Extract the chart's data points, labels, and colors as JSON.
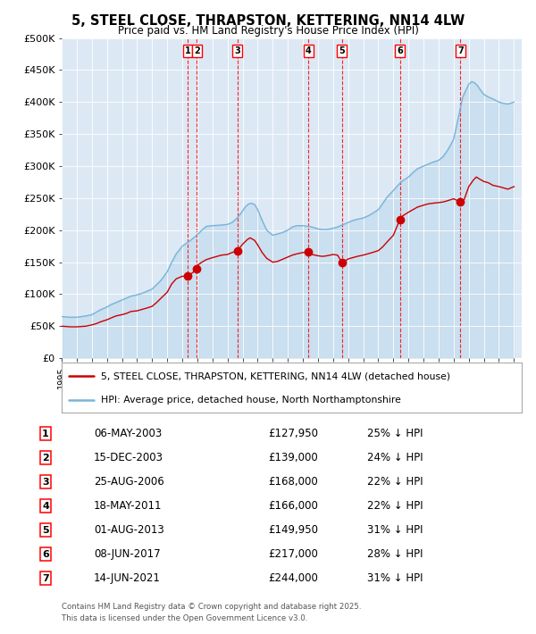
{
  "title": "5, STEEL CLOSE, THRAPSTON, KETTERING, NN14 4LW",
  "subtitle": "Price paid vs. HM Land Registry's House Price Index (HPI)",
  "background_color": "#ffffff",
  "plot_bg_color": "#dce9f5",
  "hpi_color": "#7ab4d8",
  "price_color": "#cc0000",
  "transactions": [
    {
      "num": 1,
      "date_x": 2003.35,
      "price": 127950,
      "pct": "25%",
      "label": "06-MAY-2003",
      "price_str": "£127,950"
    },
    {
      "num": 2,
      "date_x": 2003.96,
      "price": 139000,
      "pct": "24%",
      "label": "15-DEC-2003",
      "price_str": "£139,000"
    },
    {
      "num": 3,
      "date_x": 2006.65,
      "price": 168000,
      "pct": "22%",
      "label": "25-AUG-2006",
      "price_str": "£168,000"
    },
    {
      "num": 4,
      "date_x": 2011.38,
      "price": 166000,
      "pct": "22%",
      "label": "18-MAY-2011",
      "price_str": "£166,000"
    },
    {
      "num": 5,
      "date_x": 2013.58,
      "price": 149950,
      "pct": "31%",
      "label": "01-AUG-2013",
      "price_str": "£149,950"
    },
    {
      "num": 6,
      "date_x": 2017.44,
      "price": 217000,
      "pct": "28%",
      "label": "08-JUN-2017",
      "price_str": "£217,000"
    },
    {
      "num": 7,
      "date_x": 2021.45,
      "price": 244000,
      "pct": "31%",
      "label": "14-JUN-2021",
      "price_str": "£244,000"
    }
  ],
  "legend_line1": "5, STEEL CLOSE, THRAPSTON, KETTERING, NN14 4LW (detached house)",
  "legend_line2": "HPI: Average price, detached house, North Northamptonshire",
  "footer_line1": "Contains HM Land Registry data © Crown copyright and database right 2025.",
  "footer_line2": "This data is licensed under the Open Government Licence v3.0.",
  "ylim": [
    0,
    500000
  ],
  "yticks": [
    0,
    50000,
    100000,
    150000,
    200000,
    250000,
    300000,
    350000,
    400000,
    450000,
    500000
  ],
  "ytick_labels": [
    "£0",
    "£50K",
    "£100K",
    "£150K",
    "£200K",
    "£250K",
    "£300K",
    "£350K",
    "£400K",
    "£450K",
    "£500K"
  ],
  "xstart": 1995.0,
  "xend": 2025.5,
  "xtick_years": [
    1995,
    1996,
    1997,
    1998,
    1999,
    2000,
    2001,
    2002,
    2003,
    2004,
    2005,
    2006,
    2007,
    2008,
    2009,
    2010,
    2011,
    2012,
    2013,
    2014,
    2015,
    2016,
    2017,
    2018,
    2019,
    2020,
    2021,
    2022,
    2023,
    2024,
    2025
  ],
  "hpi_x": [
    1995.0,
    1995.3,
    1995.6,
    1996.0,
    1996.3,
    1996.6,
    1997.0,
    1997.3,
    1997.6,
    1998.0,
    1998.3,
    1998.6,
    1999.0,
    1999.3,
    1999.6,
    2000.0,
    2000.3,
    2000.6,
    2001.0,
    2001.3,
    2001.6,
    2002.0,
    2002.3,
    2002.6,
    2003.0,
    2003.3,
    2003.6,
    2004.0,
    2004.3,
    2004.6,
    2005.0,
    2005.3,
    2005.6,
    2006.0,
    2006.3,
    2006.6,
    2007.0,
    2007.2,
    2007.4,
    2007.6,
    2007.8,
    2008.0,
    2008.3,
    2008.6,
    2009.0,
    2009.3,
    2009.6,
    2010.0,
    2010.3,
    2010.6,
    2011.0,
    2011.3,
    2011.6,
    2012.0,
    2012.3,
    2012.6,
    2013.0,
    2013.3,
    2013.6,
    2014.0,
    2014.3,
    2014.6,
    2015.0,
    2015.3,
    2015.6,
    2016.0,
    2016.3,
    2016.6,
    2017.0,
    2017.3,
    2017.6,
    2018.0,
    2018.3,
    2018.6,
    2019.0,
    2019.3,
    2019.6,
    2020.0,
    2020.3,
    2020.6,
    2021.0,
    2021.3,
    2021.6,
    2022.0,
    2022.2,
    2022.4,
    2022.6,
    2022.8,
    2023.0,
    2023.3,
    2023.6,
    2024.0,
    2024.3,
    2024.6,
    2025.0
  ],
  "hpi_y": [
    65000,
    64500,
    64000,
    64000,
    65000,
    66000,
    68000,
    72000,
    76000,
    80000,
    84000,
    87000,
    91000,
    94000,
    97000,
    99000,
    101000,
    104000,
    108000,
    115000,
    122000,
    135000,
    150000,
    163000,
    175000,
    180000,
    185000,
    193000,
    200000,
    206000,
    207000,
    207500,
    208000,
    209000,
    212000,
    218000,
    230000,
    237000,
    241000,
    242000,
    240000,
    232000,
    215000,
    200000,
    192000,
    194000,
    196000,
    200000,
    205000,
    207000,
    207000,
    206000,
    205000,
    202000,
    201000,
    201000,
    203000,
    205000,
    208000,
    212000,
    215000,
    217000,
    219000,
    222000,
    226000,
    232000,
    242000,
    252000,
    262000,
    270000,
    277000,
    283000,
    290000,
    296000,
    300000,
    303000,
    306000,
    309000,
    315000,
    325000,
    342000,
    375000,
    408000,
    428000,
    432000,
    430000,
    425000,
    418000,
    412000,
    408000,
    405000,
    400000,
    398000,
    397000,
    400000
  ],
  "price_x": [
    1995.0,
    1995.3,
    1995.6,
    1996.0,
    1996.3,
    1996.6,
    1997.0,
    1997.3,
    1997.6,
    1998.0,
    1998.3,
    1998.6,
    1999.0,
    1999.3,
    1999.6,
    2000.0,
    2000.3,
    2000.6,
    2001.0,
    2001.3,
    2001.6,
    2002.0,
    2002.3,
    2002.6,
    2003.0,
    2003.35,
    2003.6,
    2003.96,
    2004.0,
    2004.3,
    2004.6,
    2005.0,
    2005.3,
    2005.6,
    2006.0,
    2006.3,
    2006.65,
    2007.0,
    2007.3,
    2007.5,
    2007.8,
    2008.0,
    2008.3,
    2008.6,
    2009.0,
    2009.3,
    2009.5,
    2010.0,
    2010.3,
    2010.6,
    2011.0,
    2011.38,
    2011.6,
    2012.0,
    2012.3,
    2012.6,
    2013.0,
    2013.3,
    2013.58,
    2013.8,
    2014.0,
    2014.3,
    2014.6,
    2015.0,
    2015.3,
    2015.6,
    2016.0,
    2016.3,
    2016.6,
    2017.0,
    2017.44,
    2017.6,
    2018.0,
    2018.3,
    2018.6,
    2019.0,
    2019.3,
    2019.6,
    2020.0,
    2020.3,
    2020.6,
    2021.0,
    2021.45,
    2021.7,
    2022.0,
    2022.3,
    2022.5,
    2022.7,
    2023.0,
    2023.3,
    2023.6,
    2024.0,
    2024.3,
    2024.6,
    2025.0
  ],
  "price_y": [
    50000,
    49500,
    49000,
    49000,
    49500,
    50000,
    52000,
    54000,
    57000,
    60000,
    63000,
    66000,
    68000,
    70000,
    73000,
    74000,
    76000,
    78000,
    81000,
    87000,
    94000,
    103000,
    116000,
    124000,
    128000,
    127950,
    132000,
    139000,
    145000,
    150000,
    154000,
    157000,
    159000,
    161000,
    162000,
    165000,
    168000,
    178000,
    185000,
    188000,
    184000,
    177000,
    165000,
    156000,
    150000,
    151000,
    153000,
    158000,
    161000,
    163000,
    165000,
    166000,
    162000,
    160000,
    159000,
    160000,
    162000,
    161000,
    149950,
    152000,
    155000,
    157000,
    159000,
    161000,
    163000,
    165000,
    168000,
    174000,
    182000,
    192000,
    217000,
    222000,
    228000,
    232000,
    236000,
    239000,
    241000,
    242000,
    243000,
    244000,
    246000,
    249000,
    244000,
    248000,
    268000,
    278000,
    283000,
    280000,
    276000,
    274000,
    270000,
    268000,
    266000,
    264000,
    268000
  ]
}
